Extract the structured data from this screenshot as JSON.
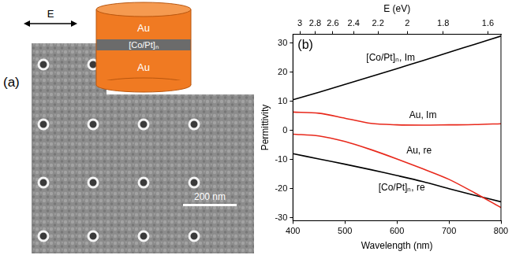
{
  "panel_a": {
    "label": "(a)",
    "field_label": "E",
    "layers": [
      "Au",
      "[Co/Pt]ₙ",
      "Au"
    ],
    "scale_bar": "200 nm"
  },
  "chart_data": {
    "type": "line",
    "panel_label": "(b)",
    "x_label": "Wavelength (nm)",
    "y_label": "Permittivity",
    "x2_label": "E (eV)",
    "x": [
      400,
      450,
      500,
      550,
      600,
      650,
      700,
      750,
      800
    ],
    "xlim": [
      400,
      800
    ],
    "xticks": [
      400,
      500,
      600,
      700,
      800
    ],
    "x2lim": [
      400,
      800
    ],
    "x2ticks": [
      {
        "value": 413.3,
        "label": "3"
      },
      {
        "value": 442.8,
        "label": "2.8"
      },
      {
        "value": 476.9,
        "label": "2.6"
      },
      {
        "value": 516.6,
        "label": "2.4"
      },
      {
        "value": 563.6,
        "label": "2.2"
      },
      {
        "value": 619.9,
        "label": "2"
      },
      {
        "value": 688.8,
        "label": "1.8"
      },
      {
        "value": 774.9,
        "label": "1.6"
      }
    ],
    "ylim": [
      -31,
      33
    ],
    "yticks": [
      -30,
      -20,
      -10,
      0,
      10,
      20,
      30
    ],
    "grid": false,
    "series": [
      {
        "name": "[Co/Pt]ₙ, Im",
        "color": "#000000",
        "values": [
          10.5,
          13.1,
          15.8,
          18.5,
          21.2,
          24.0,
          26.8,
          29.6,
          32.4
        ]
      },
      {
        "name": "Au, Im",
        "color": "#e8291c",
        "values": [
          6.3,
          5.9,
          4.2,
          2.4,
          1.9,
          1.8,
          1.9,
          2.0,
          2.3
        ]
      },
      {
        "name": "Au, re",
        "color": "#e8291c",
        "values": [
          -1.3,
          -1.9,
          -3.8,
          -6.6,
          -9.8,
          -13.2,
          -16.8,
          -21.5,
          -26.5
        ]
      },
      {
        "name": "[Co/Pt]ₙ, re",
        "color": "#000000",
        "values": [
          -8.0,
          -9.8,
          -11.6,
          -13.5,
          -15.5,
          -17.6,
          -20.0,
          -22.3,
          -24.5
        ]
      }
    ]
  }
}
